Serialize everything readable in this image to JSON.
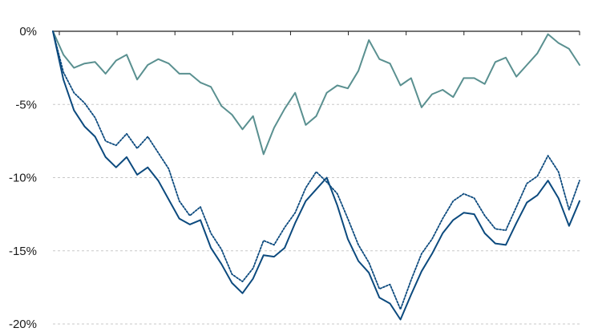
{
  "chart_data": {
    "type": "line",
    "title": "",
    "xlabel": "",
    "ylabel": "",
    "ylim": [
      -20,
      0
    ],
    "y_ticks": [
      {
        "value": 0,
        "label": "0%"
      },
      {
        "value": -5,
        "label": "-5%"
      },
      {
        "value": -10,
        "label": "-10%"
      },
      {
        "value": -15,
        "label": "-15%"
      },
      {
        "value": -20,
        "label": "-20%"
      }
    ],
    "grid": true,
    "legend": "none",
    "x": [
      0,
      2,
      4,
      6,
      8,
      10,
      12,
      14,
      16,
      18,
      20,
      22,
      24,
      26,
      28,
      30,
      32,
      34,
      36,
      38,
      40,
      42,
      44,
      46,
      48,
      50,
      52,
      54,
      56,
      58,
      60,
      62,
      64,
      66,
      68,
      70,
      72,
      74,
      76,
      78,
      80,
      82,
      84,
      86,
      88,
      90,
      92,
      94,
      96,
      98,
      100
    ],
    "series": [
      {
        "color": "#5a9090",
        "style": "solid",
        "values": [
          0,
          -1.6,
          -2.5,
          -2.2,
          -2.1,
          -2.9,
          -2.0,
          -1.6,
          -3.3,
          -2.3,
          -1.9,
          -2.2,
          -2.9,
          -2.9,
          -3.5,
          -3.8,
          -5.1,
          -5.7,
          -6.7,
          -5.8,
          -8.4,
          -6.6,
          -5.3,
          -4.2,
          -6.4,
          -5.8,
          -4.2,
          -3.7,
          -3.9,
          -2.7,
          -0.6,
          -1.9,
          -2.2,
          -3.7,
          -3.2,
          -5.2,
          -4.3,
          -4.0,
          -4.5,
          -3.2,
          -3.2,
          -3.6,
          -2.1,
          -1.8,
          -3.1,
          -2.3,
          -1.5,
          -0.2,
          -0.8,
          -1.2,
          -2.3
        ]
      },
      {
        "color": "#0c4a7e",
        "style": "solid",
        "values": [
          0,
          -3.3,
          -5.4,
          -6.5,
          -7.2,
          -8.6,
          -9.3,
          -8.6,
          -9.8,
          -9.3,
          -10.2,
          -11.5,
          -12.8,
          -13.2,
          -12.9,
          -14.8,
          -15.9,
          -17.2,
          -17.9,
          -16.9,
          -15.3,
          -15.4,
          -14.8,
          -13.1,
          -11.6,
          -10.8,
          -10.0,
          -11.9,
          -14.2,
          -15.7,
          -16.5,
          -18.2,
          -18.6,
          -19.7,
          -18.0,
          -16.4,
          -15.2,
          -13.8,
          -12.9,
          -12.4,
          -12.5,
          -13.8,
          -14.5,
          -14.6,
          -13.1,
          -11.7,
          -11.2,
          -10.2,
          -11.4,
          -13.3,
          -11.6
        ]
      },
      {
        "color": "#0c4a7e",
        "style": "dotted",
        "values": [
          0,
          -2.8,
          -4.2,
          -4.9,
          -5.9,
          -7.5,
          -7.8,
          -7.0,
          -8.0,
          -7.2,
          -8.3,
          -9.4,
          -11.6,
          -12.6,
          -12.0,
          -13.8,
          -14.9,
          -16.6,
          -17.1,
          -16.2,
          -14.3,
          -14.6,
          -13.4,
          -12.4,
          -10.7,
          -9.6,
          -10.3,
          -11.1,
          -12.8,
          -14.6,
          -15.8,
          -17.6,
          -17.3,
          -19.0,
          -17.0,
          -15.2,
          -14.2,
          -12.8,
          -11.6,
          -11.1,
          -11.4,
          -12.6,
          -13.5,
          -13.6,
          -12.0,
          -10.4,
          -9.9,
          -8.5,
          -9.6,
          -12.2,
          -10.2
        ]
      }
    ]
  }
}
